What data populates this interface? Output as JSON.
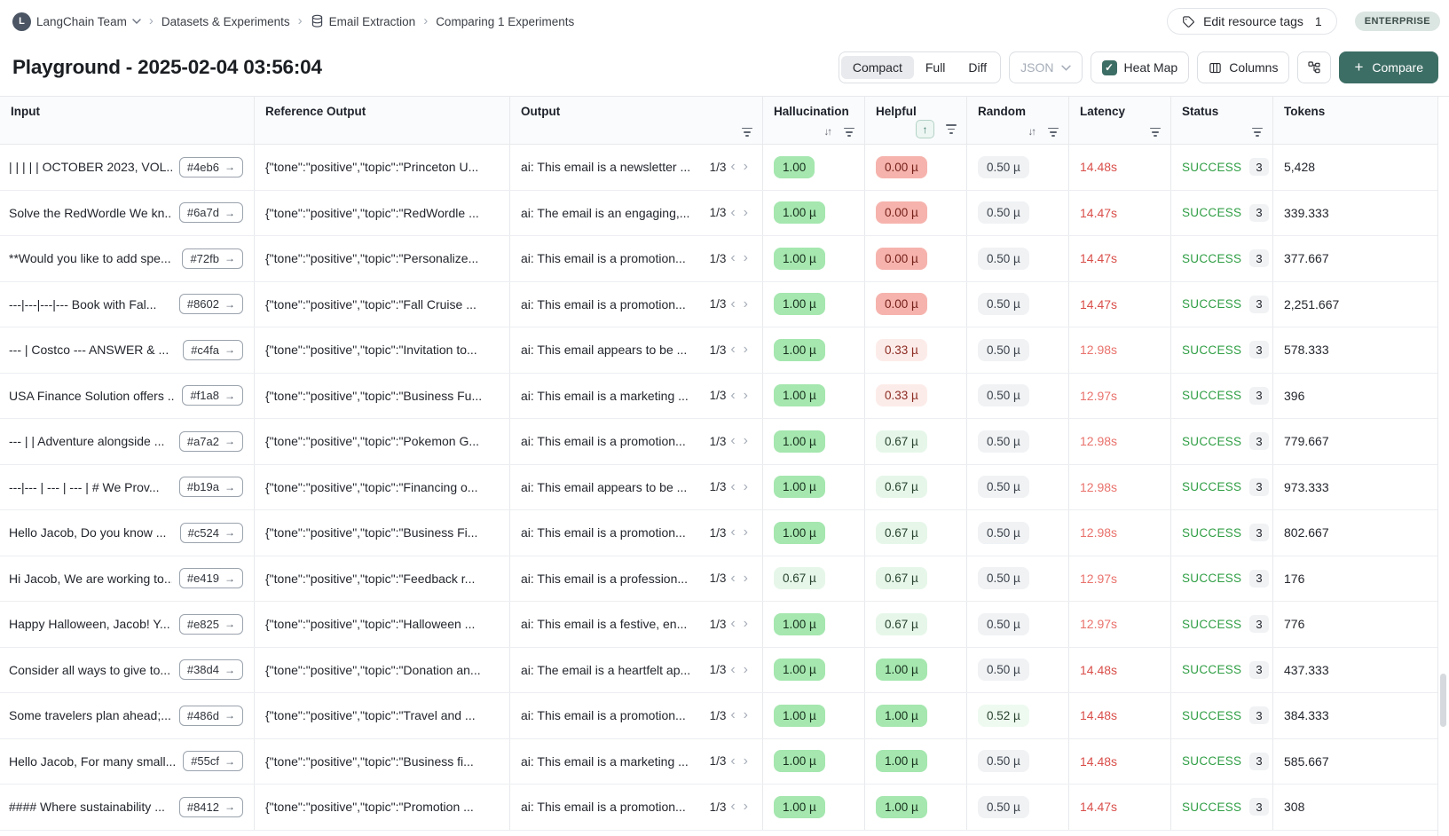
{
  "breadcrumb": {
    "org_avatar_initial": "L",
    "items": [
      {
        "label": "LangChain Team"
      },
      {
        "label": "Datasets & Experiments"
      },
      {
        "label": "Email Extraction"
      },
      {
        "label": "Comparing 1 Experiments"
      }
    ]
  },
  "topbar": {
    "edit_tags_label": "Edit resource tags",
    "edit_tags_count": "1",
    "plan_badge": "ENTERPRISE"
  },
  "toolbar": {
    "title": "Playground - 2025-02-04 03:56:04",
    "view_modes": [
      "Compact",
      "Full",
      "Diff"
    ],
    "active_view_mode": "Compact",
    "format_dropdown_value": "JSON",
    "heat_map_label": "Heat Map",
    "heat_map_checked": true,
    "columns_label": "Columns",
    "compare_label": "Compare"
  },
  "icons": {
    "open_arrow": "→",
    "chevron_left": "‹",
    "chevron_right": "›",
    "sort_pair": "↓↑",
    "sort_asc": "↑",
    "check": "✓",
    "plus": "+",
    "breadcrumb_sep": "›",
    "dropdown_chevron": "⌄"
  },
  "colors": {
    "accent_teal": "#3d6e65",
    "success_green": "#2f9e44",
    "latency_red_strong": "#d94f4a",
    "latency_red_soft": "#e9726c",
    "heat_green": "#a5e7af",
    "heat_green_light": "#e6f7e9",
    "heat_red": "#f6b3ad",
    "heat_red_light": "#fcece9",
    "heat_gray": "#f0f2f4",
    "enterprise_bg": "#dbe5e1"
  },
  "table": {
    "columns": [
      {
        "key": "input",
        "label": "Input",
        "sort": "none",
        "filter": false
      },
      {
        "key": "reference",
        "label": "Reference Output",
        "sort": "none",
        "filter": false
      },
      {
        "key": "output",
        "label": "Output",
        "sort": "none",
        "filter": true
      },
      {
        "key": "hallucination",
        "label": "Hallucination",
        "sort": "both",
        "filter": true
      },
      {
        "key": "helpful",
        "label": "Helpful",
        "sort": "asc",
        "filter": true
      },
      {
        "key": "random",
        "label": "Random",
        "sort": "both",
        "filter": true
      },
      {
        "key": "latency",
        "label": "Latency",
        "sort": "none",
        "filter": true
      },
      {
        "key": "status",
        "label": "Status",
        "sort": "none",
        "filter": true
      },
      {
        "key": "tokens",
        "label": "Tokens",
        "sort": "none",
        "filter": false
      }
    ],
    "rows": [
      {
        "input": "| | | | | OCTOBER 2023, VOL...",
        "input_id": "#4eb6",
        "reference": "{\"tone\":\"positive\",\"topic\":\"Princeton U...",
        "output": "ai: This email is a newsletter ...",
        "pager": "1/3",
        "hallucination": {
          "value": "1.00",
          "tone": "green"
        },
        "helpful": {
          "value": "0.00 µ",
          "tone": "red"
        },
        "random": {
          "value": "0.50 µ",
          "tone": "gray"
        },
        "latency": {
          "value": "14.48s",
          "tone": "strong"
        },
        "status": "SUCCESS",
        "run_count": "3",
        "tokens": "5,428"
      },
      {
        "input": "Solve the RedWordle We kn...",
        "input_id": "#6a7d",
        "reference": "{\"tone\":\"positive\",\"topic\":\"RedWordle ...",
        "output": "ai: The email is an engaging,...",
        "pager": "1/3",
        "hallucination": {
          "value": "1.00 µ",
          "tone": "green"
        },
        "helpful": {
          "value": "0.00 µ",
          "tone": "red"
        },
        "random": {
          "value": "0.50 µ",
          "tone": "gray"
        },
        "latency": {
          "value": "14.47s",
          "tone": "strong"
        },
        "status": "SUCCESS",
        "run_count": "3",
        "tokens": "339.333"
      },
      {
        "input": "**Would you like to add spe...",
        "input_id": "#72fb",
        "reference": "{\"tone\":\"positive\",\"topic\":\"Personalize...",
        "output": "ai: This email is a promotion...",
        "pager": "1/3",
        "hallucination": {
          "value": "1.00 µ",
          "tone": "green"
        },
        "helpful": {
          "value": "0.00 µ",
          "tone": "red"
        },
        "random": {
          "value": "0.50 µ",
          "tone": "gray"
        },
        "latency": {
          "value": "14.47s",
          "tone": "strong"
        },
        "status": "SUCCESS",
        "run_count": "3",
        "tokens": "377.667"
      },
      {
        "input": "---|---|---|--- Book with Fal...",
        "input_id": "#8602",
        "reference": "{\"tone\":\"positive\",\"topic\":\"Fall Cruise ...",
        "output": "ai: This email is a promotion...",
        "pager": "1/3",
        "hallucination": {
          "value": "1.00 µ",
          "tone": "green"
        },
        "helpful": {
          "value": "0.00 µ",
          "tone": "red"
        },
        "random": {
          "value": "0.50 µ",
          "tone": "gray"
        },
        "latency": {
          "value": "14.47s",
          "tone": "strong"
        },
        "status": "SUCCESS",
        "run_count": "3",
        "tokens": "2,251.667"
      },
      {
        "input": "--- | Costco --- ANSWER & ...",
        "input_id": "#c4fa",
        "reference": "{\"tone\":\"positive\",\"topic\":\"Invitation to...",
        "output": "ai: This email appears to be ...",
        "pager": "1/3",
        "hallucination": {
          "value": "1.00 µ",
          "tone": "green"
        },
        "helpful": {
          "value": "0.33 µ",
          "tone": "red-light"
        },
        "random": {
          "value": "0.50 µ",
          "tone": "gray"
        },
        "latency": {
          "value": "12.98s",
          "tone": "soft"
        },
        "status": "SUCCESS",
        "run_count": "3",
        "tokens": "578.333"
      },
      {
        "input": "USA Finance Solution offers ...",
        "input_id": "#f1a8",
        "reference": "{\"tone\":\"positive\",\"topic\":\"Business Fu...",
        "output": "ai: This email is a marketing ...",
        "pager": "1/3",
        "hallucination": {
          "value": "1.00 µ",
          "tone": "green"
        },
        "helpful": {
          "value": "0.33 µ",
          "tone": "red-light"
        },
        "random": {
          "value": "0.50 µ",
          "tone": "gray"
        },
        "latency": {
          "value": "12.97s",
          "tone": "soft"
        },
        "status": "SUCCESS",
        "run_count": "3",
        "tokens": "396"
      },
      {
        "input": "--- | | Adventure alongside ...",
        "input_id": "#a7a2",
        "reference": "{\"tone\":\"positive\",\"topic\":\"Pokemon G...",
        "output": "ai: This email is a promotion...",
        "pager": "1/3",
        "hallucination": {
          "value": "1.00 µ",
          "tone": "green"
        },
        "helpful": {
          "value": "0.67 µ",
          "tone": "green-light"
        },
        "random": {
          "value": "0.50 µ",
          "tone": "gray"
        },
        "latency": {
          "value": "12.98s",
          "tone": "soft"
        },
        "status": "SUCCESS",
        "run_count": "3",
        "tokens": "779.667"
      },
      {
        "input": "---|--- | --- | --- | # We Prov...",
        "input_id": "#b19a",
        "reference": "{\"tone\":\"positive\",\"topic\":\"Financing o...",
        "output": "ai: This email appears to be ...",
        "pager": "1/3",
        "hallucination": {
          "value": "1.00 µ",
          "tone": "green"
        },
        "helpful": {
          "value": "0.67 µ",
          "tone": "green-light"
        },
        "random": {
          "value": "0.50 µ",
          "tone": "gray"
        },
        "latency": {
          "value": "12.98s",
          "tone": "soft"
        },
        "status": "SUCCESS",
        "run_count": "3",
        "tokens": "973.333"
      },
      {
        "input": "Hello Jacob, Do you know ...",
        "input_id": "#c524",
        "reference": "{\"tone\":\"positive\",\"topic\":\"Business Fi...",
        "output": "ai: This email is a promotion...",
        "pager": "1/3",
        "hallucination": {
          "value": "1.00 µ",
          "tone": "green"
        },
        "helpful": {
          "value": "0.67 µ",
          "tone": "green-light"
        },
        "random": {
          "value": "0.50 µ",
          "tone": "gray"
        },
        "latency": {
          "value": "12.98s",
          "tone": "soft"
        },
        "status": "SUCCESS",
        "run_count": "3",
        "tokens": "802.667"
      },
      {
        "input": "Hi Jacob, We are working to...",
        "input_id": "#e419",
        "reference": "{\"tone\":\"positive\",\"topic\":\"Feedback r...",
        "output": "ai: This email is a profession...",
        "pager": "1/3",
        "hallucination": {
          "value": "0.67 µ",
          "tone": "green-light"
        },
        "helpful": {
          "value": "0.67 µ",
          "tone": "green-light"
        },
        "random": {
          "value": "0.50 µ",
          "tone": "gray"
        },
        "latency": {
          "value": "12.97s",
          "tone": "soft"
        },
        "status": "SUCCESS",
        "run_count": "3",
        "tokens": "176"
      },
      {
        "input": "Happy Halloween, Jacob! Y...",
        "input_id": "#e825",
        "reference": "{\"tone\":\"positive\",\"topic\":\"Halloween ...",
        "output": "ai: This email is a festive, en...",
        "pager": "1/3",
        "hallucination": {
          "value": "1.00 µ",
          "tone": "green"
        },
        "helpful": {
          "value": "0.67 µ",
          "tone": "green-light"
        },
        "random": {
          "value": "0.50 µ",
          "tone": "gray"
        },
        "latency": {
          "value": "12.97s",
          "tone": "soft"
        },
        "status": "SUCCESS",
        "run_count": "3",
        "tokens": "776"
      },
      {
        "input": "Consider all ways to give to...",
        "input_id": "#38d4",
        "reference": "{\"tone\":\"positive\",\"topic\":\"Donation an...",
        "output": "ai: The email is a heartfelt ap...",
        "pager": "1/3",
        "hallucination": {
          "value": "1.00 µ",
          "tone": "green"
        },
        "helpful": {
          "value": "1.00 µ",
          "tone": "green"
        },
        "random": {
          "value": "0.50 µ",
          "tone": "gray"
        },
        "latency": {
          "value": "14.48s",
          "tone": "strong"
        },
        "status": "SUCCESS",
        "run_count": "3",
        "tokens": "437.333"
      },
      {
        "input": "Some travelers plan ahead;...",
        "input_id": "#486d",
        "reference": "{\"tone\":\"positive\",\"topic\":\"Travel and ...",
        "output": "ai: This email is a promotion...",
        "pager": "1/3",
        "hallucination": {
          "value": "1.00 µ",
          "tone": "green"
        },
        "helpful": {
          "value": "1.00 µ",
          "tone": "green"
        },
        "random": {
          "value": "0.52 µ",
          "tone": "green-faint"
        },
        "latency": {
          "value": "14.48s",
          "tone": "strong"
        },
        "status": "SUCCESS",
        "run_count": "3",
        "tokens": "384.333"
      },
      {
        "input": "Hello Jacob, For many small...",
        "input_id": "#55cf",
        "reference": "{\"tone\":\"positive\",\"topic\":\"Business fi...",
        "output": "ai: This email is a marketing ...",
        "pager": "1/3",
        "hallucination": {
          "value": "1.00 µ",
          "tone": "green"
        },
        "helpful": {
          "value": "1.00 µ",
          "tone": "green"
        },
        "random": {
          "value": "0.50 µ",
          "tone": "gray"
        },
        "latency": {
          "value": "14.48s",
          "tone": "strong"
        },
        "status": "SUCCESS",
        "run_count": "3",
        "tokens": "585.667"
      },
      {
        "input": "#### Where sustainability ...",
        "input_id": "#8412",
        "reference": "{\"tone\":\"positive\",\"topic\":\"Promotion ...",
        "output": "ai: This email is a promotion...",
        "pager": "1/3",
        "hallucination": {
          "value": "1.00 µ",
          "tone": "green"
        },
        "helpful": {
          "value": "1.00 µ",
          "tone": "green"
        },
        "random": {
          "value": "0.50 µ",
          "tone": "gray"
        },
        "latency": {
          "value": "14.47s",
          "tone": "strong"
        },
        "status": "SUCCESS",
        "run_count": "3",
        "tokens": "308"
      }
    ]
  }
}
